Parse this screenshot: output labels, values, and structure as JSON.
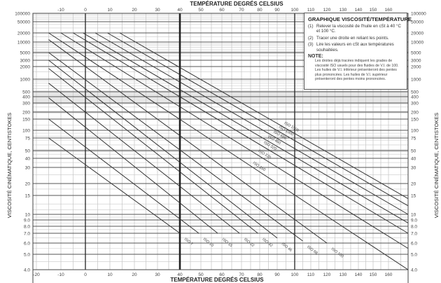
{
  "chart_data": {
    "type": "line",
    "title": "GRAPHIQUE VISCOSITÉ/TEMPÉRATURE",
    "xlabel": "TEMPÉRATURE DEGRÉS CELSIUS",
    "ylabel": "VISCOSITÉ CINÉMATIQUE, CENTISTOKES",
    "x_ticks": [
      -20,
      -10,
      0,
      10,
      20,
      30,
      40,
      50,
      60,
      70,
      80,
      90,
      100,
      110,
      120,
      130,
      140,
      150,
      160
    ],
    "y_ticks": [
      "100000",
      "50000",
      "20000",
      "10000",
      "5000",
      "3000",
      "2000",
      "1000",
      "500",
      "400",
      "300",
      "200",
      "150",
      "100",
      "75",
      "50",
      "40",
      "30",
      "20",
      "15",
      "10",
      "9.0",
      "8.0",
      "7.0",
      "6.0",
      "5.0",
      "4.0"
    ],
    "xlim": [
      -20,
      168
    ],
    "ylim": [
      4.0,
      100000
    ],
    "grid": true,
    "highlight_x": [
      0,
      40,
      100
    ],
    "series": [
      {
        "name": "ISO 7",
        "points": [
          [
            -15,
            75
          ],
          [
            40,
            7
          ]
        ]
      },
      {
        "name": "ISO 10",
        "points": [
          [
            -15,
            150
          ],
          [
            49,
            7
          ]
        ]
      },
      {
        "name": "ISO 15",
        "points": [
          [
            -15,
            380
          ],
          [
            58,
            7
          ]
        ]
      },
      {
        "name": "ISO 22",
        "points": [
          [
            -15,
            800
          ],
          [
            69,
            7
          ]
        ]
      },
      {
        "name": "ISO 32",
        "points": [
          [
            -15,
            1800
          ],
          [
            79,
            7
          ]
        ]
      },
      {
        "name": "ISO 46",
        "points": [
          [
            -15,
            3000
          ],
          [
            90,
            6.5
          ]
        ]
      },
      {
        "name": "ISO 68",
        "points": [
          [
            -15,
            5000
          ],
          [
            105,
            6.2
          ]
        ]
      },
      {
        "name": "ISO 100",
        "points": [
          [
            -15,
            12000
          ],
          [
            120,
            6
          ]
        ]
      },
      {
        "name": "ISO 150",
        "points": [
          [
            -15,
            20000
          ],
          [
            168,
            4.0
          ]
        ]
      },
      {
        "name": "ISO 220",
        "points": [
          [
            -10,
            20000
          ],
          [
            168,
            5.5
          ]
        ]
      },
      {
        "name": "ISO 320",
        "points": [
          [
            -5,
            20000
          ],
          [
            168,
            7.0
          ]
        ]
      },
      {
        "name": "ISO 460",
        "points": [
          [
            -1,
            20000
          ],
          [
            168,
            8.5
          ]
        ]
      },
      {
        "name": "ISO 680",
        "points": [
          [
            4,
            20000
          ],
          [
            168,
            10
          ]
        ]
      },
      {
        "name": "ISO 1000",
        "points": [
          [
            9,
            20000
          ],
          [
            168,
            12
          ]
        ]
      },
      {
        "name": "ISO 1500",
        "points": [
          [
            14,
            20000
          ],
          [
            168,
            14
          ]
        ]
      }
    ]
  },
  "axes": {
    "top_title": "TEMPÉRATURE DEGRÉS CELSIUS",
    "bottom_title": "TEMPÉRATURE DEGRÉS CELSIUS",
    "left_title": "VISCOSITÉ CINÉMATIQUE, CENTISTOKES",
    "right_title": "VISCOSITÉ CINÉMATIQUE, CENTISTOKES"
  },
  "legend": {
    "title": "GRAPHIQUE VISCOSITÉ/TEMPÉRATURE",
    "steps": [
      {
        "num": "(1)",
        "text": "Relever la viscosité de l'huile en cSt à 40 °C et 100 °C."
      },
      {
        "num": "(2)",
        "text": "Tracer une droite en reliant les points."
      },
      {
        "num": "(3)",
        "text": "Lire les valeurs en cSt aux températures souhaitées."
      }
    ],
    "note_title": "NOTE:",
    "note_text": "Les droites déjà tracées indiquent les grades de viscosité ISO usuels pour des fluides de V.I. de 100. Les huiles de V.I. inférieur présenteront des pentes plus prononcées. Les huiles de V.I. supérieur présenteront des pentes moins prononcées."
  }
}
